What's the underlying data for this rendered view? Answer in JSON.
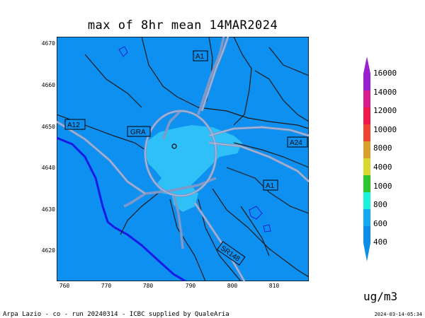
{
  "title": "max of 8hr mean 14MAR2024",
  "y_ticks": [
    "4670",
    "4660",
    "4650",
    "4640",
    "4630",
    "4620"
  ],
  "x_ticks": [
    "760",
    "770",
    "780",
    "790",
    "800",
    "810"
  ],
  "road_labels": {
    "a1_north": "A1",
    "a12": "A12",
    "gra": "GRA",
    "a24": "A24",
    "a1_east": "A1",
    "sr148": "SR148"
  },
  "colorbar": {
    "labels": [
      "16000",
      "14000",
      "12000",
      "10000",
      "8000",
      "4000",
      "1000",
      "800",
      "600",
      "400"
    ],
    "colors": [
      "#9b1fd0",
      "#d81b8f",
      "#f0184c",
      "#f04432",
      "#d99f2a",
      "#d7d930",
      "#2ec52e",
      "#19f3d9",
      "#10a9f2",
      "#0a8fe8"
    ]
  },
  "colors": {
    "background": "#0e90f0",
    "concentration": "#2ec0f7",
    "roads": "#7f98c8",
    "boundaries": "#1a1a1a",
    "coast": "#1a1ae6"
  },
  "unit_label": "ug/m3",
  "footer": "Arpa Lazio - co - run 20240314 - ICBC supplied by QualeAria",
  "timestamp": "2024-03-14-05:34"
}
